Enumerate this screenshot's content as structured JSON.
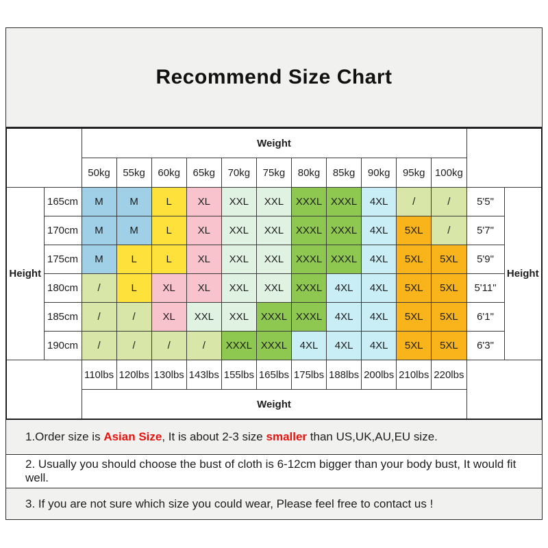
{
  "title": "Recommend Size Chart",
  "table": {
    "weight_label": "Weight",
    "height_label": "Height",
    "kg_headers": [
      "50kg",
      "55kg",
      "60kg",
      "65kg",
      "70kg",
      "75kg",
      "80kg",
      "85kg",
      "90kg",
      "95kg",
      "100kg"
    ],
    "lbs_headers": [
      "110lbs",
      "120lbs",
      "130lbs",
      "143lbs",
      "155lbs",
      "165lbs",
      "175lbs",
      "188lbs",
      "200lbs",
      "210lbs",
      "220lbs"
    ],
    "rows": [
      {
        "cm": "165cm",
        "imperial": "5'5\"",
        "sizes": [
          "M",
          "M",
          "L",
          "XL",
          "XXL",
          "XXL",
          "XXXL",
          "XXXL",
          "4XL",
          "/",
          "/"
        ]
      },
      {
        "cm": "170cm",
        "imperial": "5'7\"",
        "sizes": [
          "M",
          "M",
          "L",
          "XL",
          "XXL",
          "XXL",
          "XXXL",
          "XXXL",
          "4XL",
          "5XL",
          "/"
        ]
      },
      {
        "cm": "175cm",
        "imperial": "5'9\"",
        "sizes": [
          "M",
          "L",
          "L",
          "XL",
          "XXL",
          "XXL",
          "XXXL",
          "XXXL",
          "4XL",
          "5XL",
          "5XL"
        ]
      },
      {
        "cm": "180cm",
        "imperial": "5'11\"",
        "sizes": [
          "/",
          "L",
          "XL",
          "XL",
          "XXL",
          "XXL",
          "XXXL",
          "4XL",
          "4XL",
          "5XL",
          "5XL"
        ]
      },
      {
        "cm": "185cm",
        "imperial": "6'1\"",
        "sizes": [
          "/",
          "/",
          "XL",
          "XXL",
          "XXL",
          "XXXL",
          "XXXL",
          "4XL",
          "4XL",
          "5XL",
          "5XL"
        ]
      },
      {
        "cm": "190cm",
        "imperial": "6'3\"",
        "sizes": [
          "/",
          "/",
          "/",
          "/",
          "XXXL",
          "XXXL",
          "4XL",
          "4XL",
          "4XL",
          "5XL",
          "5XL"
        ]
      }
    ]
  },
  "size_colors": {
    "M": "#9fd0e7",
    "L": "#fee13b",
    "XL": "#f8c3cd",
    "XXL": "#e0f3e2",
    "XXXL": "#8fc850",
    "4XL": "#caeef5",
    "5XL": "#f9b31b",
    "/": "#d8e6a8"
  },
  "notes": [
    {
      "bg": "gray",
      "parts": [
        {
          "text": "1.Order size is ",
          "red": false
        },
        {
          "text": "Asian Size",
          "red": true
        },
        {
          "text": ", It is about 2-3 size ",
          "red": false
        },
        {
          "text": "smaller",
          "red": true
        },
        {
          "text": " than US,UK,AU,EU size.",
          "red": false
        }
      ]
    },
    {
      "bg": "white",
      "parts": [
        {
          "text": "2. Usually you should choose the bust of cloth is 6-12cm bigger than your body bust, It would fit well.",
          "red": false
        }
      ]
    },
    {
      "bg": "gray",
      "parts": [
        {
          "text": "3. If you are not sure which size you could wear, Please feel free to contact us !",
          "red": false
        }
      ]
    }
  ],
  "colors": {
    "highlight_red": "#e8120e",
    "grid_line": "#3a3a3a",
    "panel_bg": "#f1f1ef"
  }
}
